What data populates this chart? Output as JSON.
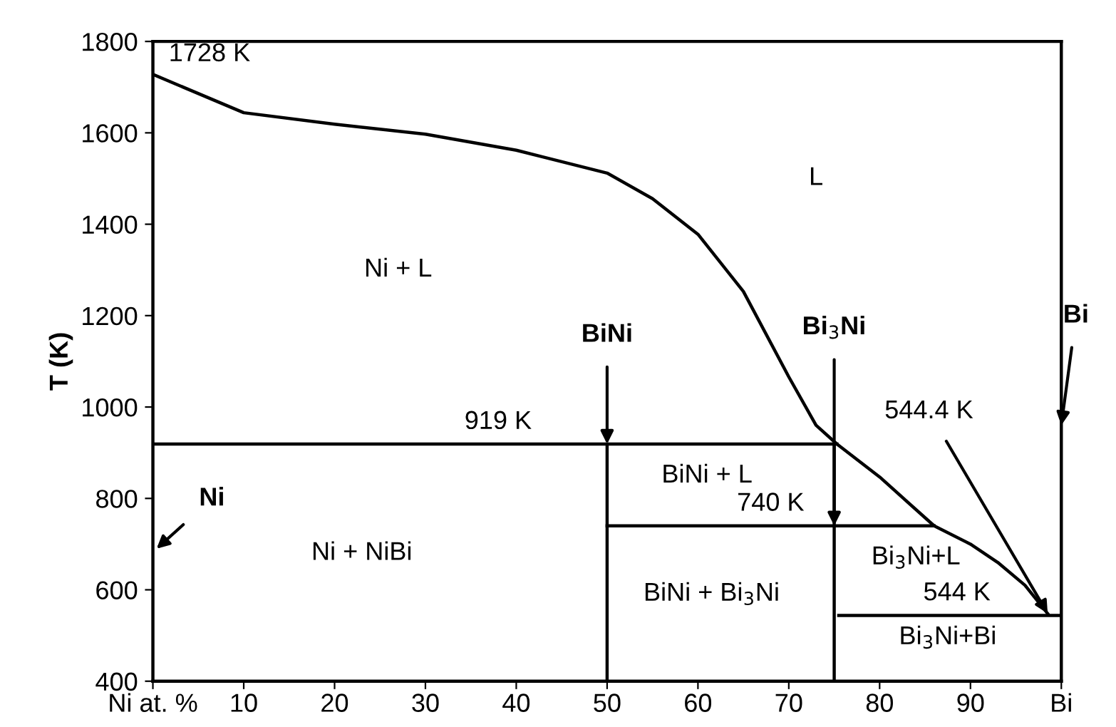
{
  "chart_data": {
    "type": "line",
    "ylabel": "T (K)",
    "xlim": [
      0,
      100
    ],
    "ylim": [
      400,
      1800
    ],
    "xticks": [
      {
        "value": 0,
        "label": "Ni at. %"
      },
      10,
      20,
      30,
      40,
      50,
      60,
      70,
      80,
      90,
      {
        "value": 100,
        "label": "Bi"
      }
    ],
    "yticks": [
      400,
      600,
      800,
      1000,
      1200,
      1400,
      1600,
      1800
    ],
    "grid": false,
    "legend": false,
    "marker": "none",
    "line_style": "solid",
    "series": [
      {
        "color": "#000000",
        "x": [
          0,
          10,
          20,
          30,
          40,
          50,
          55,
          60,
          65,
          70,
          73,
          75.3,
          80,
          86,
          90,
          93,
          96,
          98.5
        ],
        "values": [
          1728,
          1644,
          1619,
          1597,
          1562,
          1512,
          1456,
          1378,
          1253,
          1066,
          960,
          919,
          847,
          740,
          700,
          660,
          610,
          548
        ]
      },
      {
        "color": "#000000",
        "x": [
          0,
          75.3
        ],
        "values": [
          919,
          919
        ]
      },
      {
        "color": "#000000",
        "x": [
          50,
          86
        ],
        "values": [
          740,
          740
        ]
      },
      {
        "color": "#000000",
        "x": [
          75.5,
          100
        ],
        "values": [
          544,
          544
        ]
      },
      {
        "color": "#000000",
        "x": [
          50,
          50
        ],
        "values": [
          400,
          919
        ]
      },
      {
        "color": "#000000",
        "x": [
          75,
          75
        ],
        "values": [
          400,
          919
        ]
      }
    ],
    "annotations": [
      {
        "text": "1728 K",
        "x": 0,
        "y": 1728
      },
      "L",
      "Ni + L",
      {
        "text": "919 K",
        "x": 38,
        "y": 919
      },
      {
        "text": "BiNi",
        "x": 50,
        "y": 919
      },
      {
        "text": "Bi$_{3}$Ni",
        "x": 75,
        "y": 740
      },
      "Bi",
      {
        "text": "544.4 K",
        "x": 98.5,
        "y": 548
      },
      "Ni",
      "BiNi + L",
      {
        "text": "740 K",
        "x": 68,
        "y": 740
      },
      "Ni + NiBi",
      "BiNi + Bi$_{3}$Ni",
      "Bi$_{3}$Ni+L",
      {
        "text": "544 K",
        "x": 88.5,
        "y": 544
      },
      "Bi$_{3}$Ni+Bi"
    ]
  }
}
